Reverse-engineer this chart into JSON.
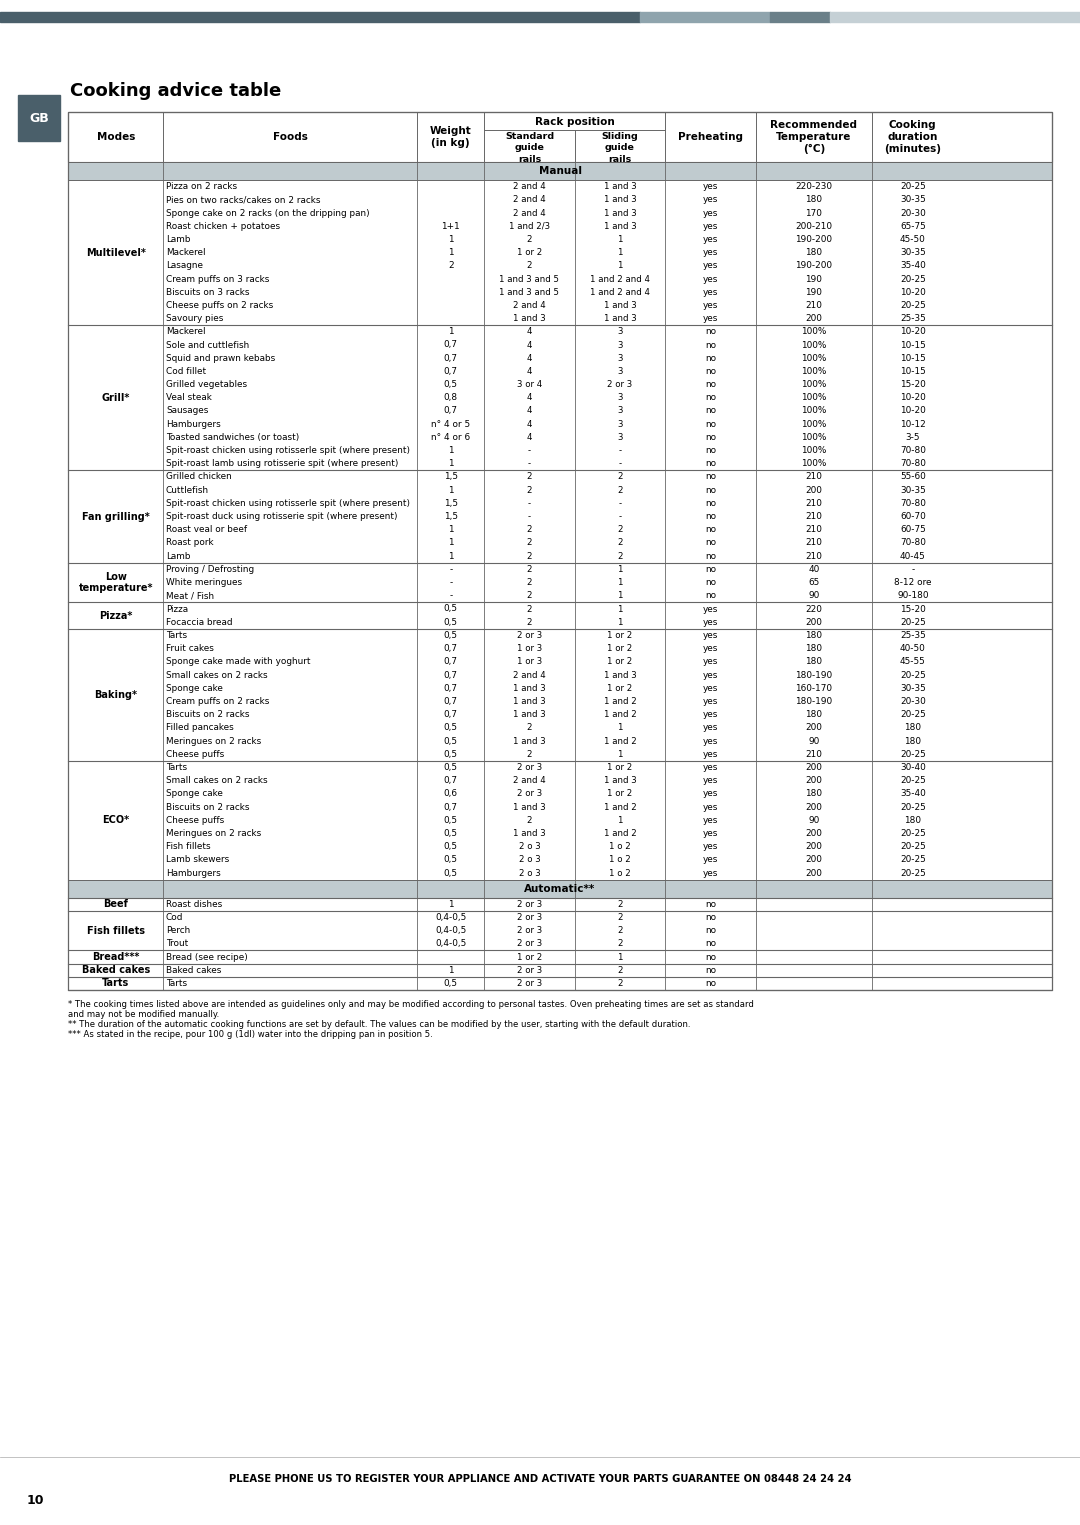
{
  "title": "Cooking advice table",
  "page_label": "GB",
  "footer_text": "PLEASE PHONE US TO REGISTER YOUR APPLIANCE AND ACTIVATE YOUR PARTS GUARANTEE ON 08448 24 24 24",
  "page_number": "10",
  "footnotes": [
    "* The cooking times listed above are intended as guidelines only and may be modified according to personal tastes. Oven preheating times are set as standard",
    "and may not be modified manually.",
    "** The duration of the automatic cooking functions are set by default. The values can be modified by the user, starting with the default duration.",
    "*** As stated in the recipe, pour 100 g (1dl) water into the dripping pan in position 5."
  ],
  "topbar_color": "#4a5f6a",
  "topbar_color2": "#8fa4ad",
  "topbar_color3": "#6b8089",
  "topbar_color4": "#c5d0d5",
  "gb_bg": "#4a5f6a",
  "subheader_bg": "#c0cbcf",
  "border_color": "#666666",
  "rows": [
    {
      "mode": "Multilevel*",
      "food": "Pizza on 2 racks",
      "weight": "",
      "std": "2 and 4",
      "sld": "1 and 3",
      "preheat": "yes",
      "temp": "220-230",
      "duration": "20-25",
      "section": "manual",
      "mode_start": true
    },
    {
      "mode": "",
      "food": "Pies on two racks/cakes on 2 racks",
      "weight": "",
      "std": "2 and 4",
      "sld": "1 and 3",
      "preheat": "yes",
      "temp": "180",
      "duration": "30-35",
      "section": "manual",
      "mode_start": false
    },
    {
      "mode": "",
      "food": "Sponge cake on 2 racks (on the dripping pan)",
      "weight": "",
      "std": "2 and 4",
      "sld": "1 and 3",
      "preheat": "yes",
      "temp": "170",
      "duration": "20-30",
      "section": "manual",
      "mode_start": false
    },
    {
      "mode": "",
      "food": "Roast chicken + potatoes",
      "weight": "1+1",
      "std": "1 and 2/3",
      "sld": "1 and 3",
      "preheat": "yes",
      "temp": "200-210",
      "duration": "65-75",
      "section": "manual",
      "mode_start": false
    },
    {
      "mode": "",
      "food": "Lamb",
      "weight": "1",
      "std": "2",
      "sld": "1",
      "preheat": "yes",
      "temp": "190-200",
      "duration": "45-50",
      "section": "manual",
      "mode_start": false
    },
    {
      "mode": "",
      "food": "Mackerel",
      "weight": "1",
      "std": "1 or 2",
      "sld": "1",
      "preheat": "yes",
      "temp": "180",
      "duration": "30-35",
      "section": "manual",
      "mode_start": false
    },
    {
      "mode": "",
      "food": "Lasagne",
      "weight": "2",
      "std": "2",
      "sld": "1",
      "preheat": "yes",
      "temp": "190-200",
      "duration": "35-40",
      "section": "manual",
      "mode_start": false
    },
    {
      "mode": "",
      "food": "Cream puffs on 3 racks",
      "weight": "",
      "std": "1 and 3 and 5",
      "sld": "1 and 2 and 4",
      "preheat": "yes",
      "temp": "190",
      "duration": "20-25",
      "section": "manual",
      "mode_start": false
    },
    {
      "mode": "",
      "food": "Biscuits on 3 racks",
      "weight": "",
      "std": "1 and 3 and 5",
      "sld": "1 and 2 and 4",
      "preheat": "yes",
      "temp": "190",
      "duration": "10-20",
      "section": "manual",
      "mode_start": false
    },
    {
      "mode": "",
      "food": "Cheese puffs on 2 racks",
      "weight": "",
      "std": "2 and 4",
      "sld": "1 and 3",
      "preheat": "yes",
      "temp": "210",
      "duration": "20-25",
      "section": "manual",
      "mode_start": false
    },
    {
      "mode": "",
      "food": "Savoury pies",
      "weight": "",
      "std": "1 and 3",
      "sld": "1 and 3",
      "preheat": "yes",
      "temp": "200",
      "duration": "25-35",
      "section": "manual",
      "mode_start": false
    },
    {
      "mode": "Grill*",
      "food": "Mackerel",
      "weight": "1",
      "std": "4",
      "sld": "3",
      "preheat": "no",
      "temp": "100%",
      "duration": "10-20",
      "section": "manual",
      "mode_start": true
    },
    {
      "mode": "",
      "food": "Sole and cuttlefish",
      "weight": "0,7",
      "std": "4",
      "sld": "3",
      "preheat": "no",
      "temp": "100%",
      "duration": "10-15",
      "section": "manual",
      "mode_start": false
    },
    {
      "mode": "",
      "food": "Squid and prawn kebabs",
      "weight": "0,7",
      "std": "4",
      "sld": "3",
      "preheat": "no",
      "temp": "100%",
      "duration": "10-15",
      "section": "manual",
      "mode_start": false
    },
    {
      "mode": "",
      "food": "Cod fillet",
      "weight": "0,7",
      "std": "4",
      "sld": "3",
      "preheat": "no",
      "temp": "100%",
      "duration": "10-15",
      "section": "manual",
      "mode_start": false
    },
    {
      "mode": "",
      "food": "Grilled vegetables",
      "weight": "0,5",
      "std": "3 or 4",
      "sld": "2 or 3",
      "preheat": "no",
      "temp": "100%",
      "duration": "15-20",
      "section": "manual",
      "mode_start": false
    },
    {
      "mode": "",
      "food": "Veal steak",
      "weight": "0,8",
      "std": "4",
      "sld": "3",
      "preheat": "no",
      "temp": "100%",
      "duration": "10-20",
      "section": "manual",
      "mode_start": false
    },
    {
      "mode": "",
      "food": "Sausages",
      "weight": "0,7",
      "std": "4",
      "sld": "3",
      "preheat": "no",
      "temp": "100%",
      "duration": "10-20",
      "section": "manual",
      "mode_start": false
    },
    {
      "mode": "",
      "food": "Hamburgers",
      "weight": "n° 4 or 5",
      "std": "4",
      "sld": "3",
      "preheat": "no",
      "temp": "100%",
      "duration": "10-12",
      "section": "manual",
      "mode_start": false
    },
    {
      "mode": "",
      "food": "Toasted sandwiches (or toast)",
      "weight": "n° 4 or 6",
      "std": "4",
      "sld": "3",
      "preheat": "no",
      "temp": "100%",
      "duration": "3-5",
      "section": "manual",
      "mode_start": false
    },
    {
      "mode": "",
      "food": "Spit-roast chicken using rotisserle spit (where present)",
      "weight": "1",
      "std": "-",
      "sld": "-",
      "preheat": "no",
      "temp": "100%",
      "duration": "70-80",
      "section": "manual",
      "mode_start": false
    },
    {
      "mode": "",
      "food": "Spit-roast lamb using rotisserie spit (where present)",
      "weight": "1",
      "std": "-",
      "sld": "-",
      "preheat": "no",
      "temp": "100%",
      "duration": "70-80",
      "section": "manual",
      "mode_start": false
    },
    {
      "mode": "Fan grilling*",
      "food": "Grilled chicken",
      "weight": "1,5",
      "std": "2",
      "sld": "2",
      "preheat": "no",
      "temp": "210",
      "duration": "55-60",
      "section": "manual",
      "mode_start": true
    },
    {
      "mode": "",
      "food": "Cuttlefish",
      "weight": "1",
      "std": "2",
      "sld": "2",
      "preheat": "no",
      "temp": "200",
      "duration": "30-35",
      "section": "manual",
      "mode_start": false
    },
    {
      "mode": "",
      "food": "Spit-roast chicken using rotisserle spit (where present)",
      "weight": "1,5",
      "std": "-",
      "sld": "-",
      "preheat": "no",
      "temp": "210",
      "duration": "70-80",
      "section": "manual",
      "mode_start": false
    },
    {
      "mode": "",
      "food": "Spit-roast duck using rotisserie spit (where present)",
      "weight": "1,5",
      "std": "-",
      "sld": "-",
      "preheat": "no",
      "temp": "210",
      "duration": "60-70",
      "section": "manual",
      "mode_start": false
    },
    {
      "mode": "",
      "food": "Roast veal or beef",
      "weight": "1",
      "std": "2",
      "sld": "2",
      "preheat": "no",
      "temp": "210",
      "duration": "60-75",
      "section": "manual",
      "mode_start": false
    },
    {
      "mode": "",
      "food": "Roast pork",
      "weight": "1",
      "std": "2",
      "sld": "2",
      "preheat": "no",
      "temp": "210",
      "duration": "70-80",
      "section": "manual",
      "mode_start": false
    },
    {
      "mode": "",
      "food": "Lamb",
      "weight": "1",
      "std": "2",
      "sld": "2",
      "preheat": "no",
      "temp": "210",
      "duration": "40-45",
      "section": "manual",
      "mode_start": false
    },
    {
      "mode": "Low\ntemperature*",
      "food": "Proving / Defrosting",
      "weight": "-",
      "std": "2",
      "sld": "1",
      "preheat": "no",
      "temp": "40",
      "duration": "-",
      "section": "manual",
      "mode_start": true
    },
    {
      "mode": "",
      "food": "White meringues",
      "weight": "-",
      "std": "2",
      "sld": "1",
      "preheat": "no",
      "temp": "65",
      "duration": "8-12 ore",
      "section": "manual",
      "mode_start": false
    },
    {
      "mode": "",
      "food": "Meat / Fish",
      "weight": "-",
      "std": "2",
      "sld": "1",
      "preheat": "no",
      "temp": "90",
      "duration": "90-180",
      "section": "manual",
      "mode_start": false
    },
    {
      "mode": "Pizza*",
      "food": "Pizza",
      "weight": "0,5",
      "std": "2",
      "sld": "1",
      "preheat": "yes",
      "temp": "220",
      "duration": "15-20",
      "section": "manual",
      "mode_start": true
    },
    {
      "mode": "",
      "food": "Focaccia bread",
      "weight": "0,5",
      "std": "2",
      "sld": "1",
      "preheat": "yes",
      "temp": "200",
      "duration": "20-25",
      "section": "manual",
      "mode_start": false
    },
    {
      "mode": "Baking*",
      "food": "Tarts",
      "weight": "0,5",
      "std": "2 or 3",
      "sld": "1 or 2",
      "preheat": "yes",
      "temp": "180",
      "duration": "25-35",
      "section": "manual",
      "mode_start": true
    },
    {
      "mode": "",
      "food": "Fruit cakes",
      "weight": "0,7",
      "std": "1 or 3",
      "sld": "1 or 2",
      "preheat": "yes",
      "temp": "180",
      "duration": "40-50",
      "section": "manual",
      "mode_start": false
    },
    {
      "mode": "",
      "food": "Sponge cake made with yoghurt",
      "weight": "0,7",
      "std": "1 or 3",
      "sld": "1 or 2",
      "preheat": "yes",
      "temp": "180",
      "duration": "45-55",
      "section": "manual",
      "mode_start": false
    },
    {
      "mode": "",
      "food": "Small cakes on 2 racks",
      "weight": "0,7",
      "std": "2 and 4",
      "sld": "1 and 3",
      "preheat": "yes",
      "temp": "180-190",
      "duration": "20-25",
      "section": "manual",
      "mode_start": false
    },
    {
      "mode": "",
      "food": "Sponge cake",
      "weight": "0,7",
      "std": "1 and 3",
      "sld": "1 or 2",
      "preheat": "yes",
      "temp": "160-170",
      "duration": "30-35",
      "section": "manual",
      "mode_start": false
    },
    {
      "mode": "",
      "food": "Cream puffs on 2 racks",
      "weight": "0,7",
      "std": "1 and 3",
      "sld": "1 and 2",
      "preheat": "yes",
      "temp": "180-190",
      "duration": "20-30",
      "section": "manual",
      "mode_start": false
    },
    {
      "mode": "",
      "food": "Biscuits on 2 racks",
      "weight": "0,7",
      "std": "1 and 3",
      "sld": "1 and 2",
      "preheat": "yes",
      "temp": "180",
      "duration": "20-25",
      "section": "manual",
      "mode_start": false
    },
    {
      "mode": "",
      "food": "Filled pancakes",
      "weight": "0,5",
      "std": "2",
      "sld": "1",
      "preheat": "yes",
      "temp": "200",
      "duration": "180",
      "section": "manual",
      "mode_start": false
    },
    {
      "mode": "",
      "food": "Meringues on 2 racks",
      "weight": "0,5",
      "std": "1 and 3",
      "sld": "1 and 2",
      "preheat": "yes",
      "temp": "90",
      "duration": "180",
      "section": "manual",
      "mode_start": false
    },
    {
      "mode": "",
      "food": "Cheese puffs",
      "weight": "0,5",
      "std": "2",
      "sld": "1",
      "preheat": "yes",
      "temp": "210",
      "duration": "20-25",
      "section": "manual",
      "mode_start": false
    },
    {
      "mode": "ECO*",
      "food": "Tarts",
      "weight": "0,5",
      "std": "2 or 3",
      "sld": "1 or 2",
      "preheat": "yes",
      "temp": "200",
      "duration": "30-40",
      "section": "manual",
      "mode_start": true
    },
    {
      "mode": "",
      "food": "Small cakes on 2 racks",
      "weight": "0,7",
      "std": "2 and 4",
      "sld": "1 and 3",
      "preheat": "yes",
      "temp": "200",
      "duration": "20-25",
      "section": "manual",
      "mode_start": false
    },
    {
      "mode": "",
      "food": "Sponge cake",
      "weight": "0,6",
      "std": "2 or 3",
      "sld": "1 or 2",
      "preheat": "yes",
      "temp": "180",
      "duration": "35-40",
      "section": "manual",
      "mode_start": false
    },
    {
      "mode": "",
      "food": "Biscuits on 2 racks",
      "weight": "0,7",
      "std": "1 and 3",
      "sld": "1 and 2",
      "preheat": "yes",
      "temp": "200",
      "duration": "20-25",
      "section": "manual",
      "mode_start": false
    },
    {
      "mode": "",
      "food": "Cheese puffs",
      "weight": "0,5",
      "std": "2",
      "sld": "1",
      "preheat": "yes",
      "temp": "90",
      "duration": "180",
      "section": "manual",
      "mode_start": false
    },
    {
      "mode": "",
      "food": "Meringues on 2 racks",
      "weight": "0,5",
      "std": "1 and 3",
      "sld": "1 and 2",
      "preheat": "yes",
      "temp": "200",
      "duration": "20-25",
      "section": "manual",
      "mode_start": false
    },
    {
      "mode": "",
      "food": "Fish fillets",
      "weight": "0,5",
      "std": "2 o 3",
      "sld": "1 o 2",
      "preheat": "yes",
      "temp": "200",
      "duration": "20-25",
      "section": "manual",
      "mode_start": false
    },
    {
      "mode": "",
      "food": "Lamb skewers",
      "weight": "0,5",
      "std": "2 o 3",
      "sld": "1 o 2",
      "preheat": "yes",
      "temp": "200",
      "duration": "20-25",
      "section": "manual",
      "mode_start": false
    },
    {
      "mode": "",
      "food": "Hamburgers",
      "weight": "0,5",
      "std": "2 o 3",
      "sld": "1 o 2",
      "preheat": "yes",
      "temp": "200",
      "duration": "20-25",
      "section": "manual",
      "mode_start": false
    },
    {
      "mode": "Beef",
      "food": "Roast dishes",
      "weight": "1",
      "std": "2 or 3",
      "sld": "2",
      "preheat": "no",
      "temp": "",
      "duration": "",
      "section": "automatic",
      "mode_start": true
    },
    {
      "mode": "Fish fillets",
      "food": "Cod",
      "weight": "0,4-0,5",
      "std": "2 or 3",
      "sld": "2",
      "preheat": "no",
      "temp": "",
      "duration": "",
      "section": "automatic",
      "mode_start": true
    },
    {
      "mode": "",
      "food": "Perch",
      "weight": "0,4-0,5",
      "std": "2 or 3",
      "sld": "2",
      "preheat": "no",
      "temp": "",
      "duration": "",
      "section": "automatic",
      "mode_start": false
    },
    {
      "mode": "",
      "food": "Trout",
      "weight": "0,4-0,5",
      "std": "2 or 3",
      "sld": "2",
      "preheat": "no",
      "temp": "",
      "duration": "",
      "section": "automatic",
      "mode_start": false
    },
    {
      "mode": "Bread***",
      "food": "Bread (see recipe)",
      "weight": "",
      "std": "1 or 2",
      "sld": "1",
      "preheat": "no",
      "temp": "",
      "duration": "",
      "section": "automatic",
      "mode_start": true
    },
    {
      "mode": "Baked cakes",
      "food": "Baked cakes",
      "weight": "1",
      "std": "2 or 3",
      "sld": "2",
      "preheat": "no",
      "temp": "",
      "duration": "",
      "section": "automatic",
      "mode_start": true
    },
    {
      "mode": "Tarts",
      "food": "Tarts",
      "weight": "0,5",
      "std": "2 or 3",
      "sld": "2",
      "preheat": "no",
      "temp": "",
      "duration": "",
      "section": "automatic",
      "mode_start": true
    }
  ]
}
